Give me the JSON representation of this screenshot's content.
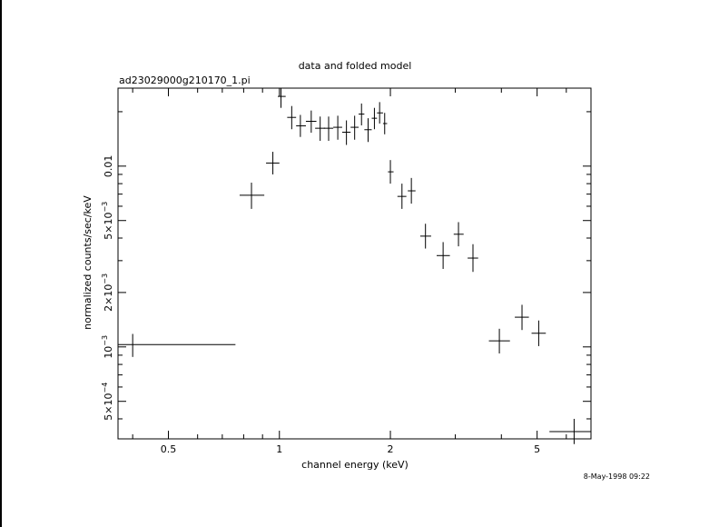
{
  "chart_data": {
    "type": "scatter",
    "title": "data and folded model",
    "subtitle": "ad23029000g210170_1.pi",
    "xlabel": "channel energy (keV)",
    "ylabel": "normalized counts/sec/keV",
    "xscale": "log",
    "yscale": "log",
    "xlim": [
      0.365,
      7.0
    ],
    "ylim": [
      0.00031,
      0.027
    ],
    "x_ticks": [
      {
        "value": 0.5,
        "label": "0.5"
      },
      {
        "value": 1,
        "label": "1"
      },
      {
        "value": 2,
        "label": "2"
      },
      {
        "value": 5,
        "label": "5"
      }
    ],
    "y_ticks": [
      {
        "value": 0.0005,
        "mantissa": "5×10",
        "exp": "−4"
      },
      {
        "value": 0.001,
        "mantissa": "10",
        "exp": "−3"
      },
      {
        "value": 0.002,
        "mantissa": "2×10",
        "exp": "−3"
      },
      {
        "value": 0.005,
        "mantissa": "5×10",
        "exp": "−3"
      },
      {
        "value": 0.01,
        "mantissa": "0.01",
        "exp": ""
      }
    ],
    "points": [
      {
        "x": 0.4,
        "xerr": [
          0.365,
          0.76
        ],
        "y": 0.00103,
        "yerr": [
          0.00088,
          0.00118
        ]
      },
      {
        "x": 0.84,
        "xerr": [
          0.78,
          0.91
        ],
        "y": 0.0069,
        "yerr": [
          0.0058,
          0.0081
        ]
      },
      {
        "x": 0.96,
        "xerr": [
          0.92,
          1.0
        ],
        "y": 0.0104,
        "yerr": [
          0.009,
          0.012
        ]
      },
      {
        "x": 1.01,
        "xerr": [
          0.99,
          1.04
        ],
        "y": 0.0243,
        "yerr": [
          0.021,
          0.027
        ]
      },
      {
        "x": 1.08,
        "xerr": [
          1.05,
          1.11
        ],
        "y": 0.0186,
        "yerr": [
          0.016,
          0.0215
        ]
      },
      {
        "x": 1.14,
        "xerr": [
          1.11,
          1.18
        ],
        "y": 0.0167,
        "yerr": [
          0.0145,
          0.0192
        ]
      },
      {
        "x": 1.22,
        "xerr": [
          1.18,
          1.26
        ],
        "y": 0.0177,
        "yerr": [
          0.0153,
          0.0203
        ]
      },
      {
        "x": 1.29,
        "xerr": [
          1.25,
          1.33
        ],
        "y": 0.0162,
        "yerr": [
          0.0138,
          0.0188
        ]
      },
      {
        "x": 1.36,
        "xerr": [
          1.32,
          1.4
        ],
        "y": 0.0162,
        "yerr": [
          0.0138,
          0.0188
        ]
      },
      {
        "x": 1.44,
        "xerr": [
          1.4,
          1.48
        ],
        "y": 0.0164,
        "yerr": [
          0.014,
          0.019
        ]
      },
      {
        "x": 1.52,
        "xerr": [
          1.48,
          1.56
        ],
        "y": 0.0154,
        "yerr": [
          0.0131,
          0.0179
        ]
      },
      {
        "x": 1.6,
        "xerr": [
          1.56,
          1.64
        ],
        "y": 0.0164,
        "yerr": [
          0.014,
          0.019
        ]
      },
      {
        "x": 1.67,
        "xerr": [
          1.64,
          1.7
        ],
        "y": 0.0194,
        "yerr": [
          0.0168,
          0.0222
        ]
      },
      {
        "x": 1.74,
        "xerr": [
          1.7,
          1.78
        ],
        "y": 0.0159,
        "yerr": [
          0.0136,
          0.0184
        ]
      },
      {
        "x": 1.81,
        "xerr": [
          1.78,
          1.84
        ],
        "y": 0.0184,
        "yerr": [
          0.016,
          0.021
        ]
      },
      {
        "x": 1.87,
        "xerr": [
          1.84,
          1.91
        ],
        "y": 0.0197,
        "yerr": [
          0.0172,
          0.0226
        ]
      },
      {
        "x": 1.93,
        "xerr": [
          1.91,
          1.96
        ],
        "y": 0.0172,
        "yerr": [
          0.015,
          0.0197
        ]
      },
      {
        "x": 2.0,
        "xerr": [
          1.97,
          2.04
        ],
        "y": 0.0093,
        "yerr": [
          0.008,
          0.0108
        ]
      },
      {
        "x": 2.15,
        "xerr": [
          2.09,
          2.21
        ],
        "y": 0.0068,
        "yerr": [
          0.0058,
          0.008
        ]
      },
      {
        "x": 2.28,
        "xerr": [
          2.23,
          2.34
        ],
        "y": 0.0073,
        "yerr": [
          0.0062,
          0.0086
        ]
      },
      {
        "x": 2.49,
        "xerr": [
          2.41,
          2.58
        ],
        "y": 0.0041,
        "yerr": [
          0.0035,
          0.0048
        ]
      },
      {
        "x": 2.78,
        "xerr": [
          2.67,
          2.9
        ],
        "y": 0.0032,
        "yerr": [
          0.0027,
          0.0038
        ]
      },
      {
        "x": 3.06,
        "xerr": [
          2.97,
          3.16
        ],
        "y": 0.0042,
        "yerr": [
          0.0036,
          0.0049
        ]
      },
      {
        "x": 3.35,
        "xerr": [
          3.24,
          3.46
        ],
        "y": 0.0031,
        "yerr": [
          0.0026,
          0.0037
        ]
      },
      {
        "x": 3.95,
        "xerr": [
          3.7,
          4.22
        ],
        "y": 0.00108,
        "yerr": [
          0.00092,
          0.00126
        ]
      },
      {
        "x": 4.55,
        "xerr": [
          4.35,
          4.75
        ],
        "y": 0.00146,
        "yerr": [
          0.00124,
          0.00171
        ]
      },
      {
        "x": 5.05,
        "xerr": [
          4.83,
          5.28
        ],
        "y": 0.00119,
        "yerr": [
          0.00101,
          0.0014
        ]
      },
      {
        "x": 6.3,
        "xerr": [
          5.4,
          7.0
        ],
        "y": 0.00034,
        "yerr": [
          0.00029,
          0.0004
        ]
      }
    ]
  },
  "footer": {
    "timestamp": "8-May-1998 09:22"
  }
}
